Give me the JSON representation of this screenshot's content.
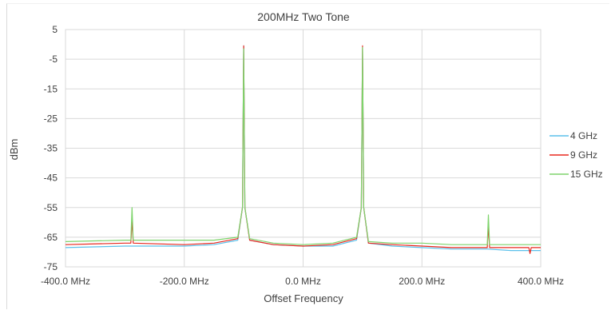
{
  "chart_data": {
    "type": "line",
    "title": "200MHz Two Tone",
    "xlabel": "Offset Frequency",
    "ylabel": "dBm",
    "xlim": [
      -400,
      400
    ],
    "ylim": [
      -75,
      5
    ],
    "x_unit": "MHz",
    "xticks": [
      "-400.0 MHz",
      "-200.0 MHz",
      "0.0 MHz",
      "200.0 MHz",
      "400.0 MHz"
    ],
    "yticks": [
      "5",
      "-5",
      "-15",
      "-25",
      "-35",
      "-45",
      "-55",
      "-65",
      "-75"
    ],
    "grid": "vertical and horizontal",
    "legend_position": "right",
    "series": [
      {
        "name": "4 GHz",
        "color": "#5bc0eb",
        "x": [
          -400,
          -300,
          -290,
          -200,
          -150,
          -110,
          -102,
          -100,
          -98,
          -90,
          -50,
          0,
          50,
          90,
          98,
          100,
          102,
          110,
          150,
          200,
          250,
          290,
          300,
          310,
          350,
          400
        ],
        "y": [
          -68.5,
          -68.0,
          -68.0,
          -68.0,
          -67.5,
          -66.0,
          -55.0,
          -0.5,
          -55.0,
          -66.0,
          -67.5,
          -68.0,
          -68.0,
          -66.0,
          -55.0,
          -1.5,
          -55.0,
          -67.0,
          -68.0,
          -68.5,
          -69.0,
          -69.0,
          -69.0,
          -69.0,
          -69.5,
          -69.5
        ]
      },
      {
        "name": "9 GHz",
        "color": "#e8281e",
        "x": [
          -400,
          -300,
          -290,
          -288,
          -286,
          -200,
          -150,
          -110,
          -102,
          -100,
          -98,
          -90,
          -50,
          0,
          50,
          90,
          98,
          100,
          102,
          110,
          150,
          200,
          250,
          300,
          310,
          312,
          314,
          350,
          380,
          382,
          384,
          400
        ],
        "y": [
          -67.5,
          -67.0,
          -67.0,
          -59.0,
          -67.0,
          -67.5,
          -67.0,
          -65.5,
          -55.0,
          -0.5,
          -55.0,
          -66.0,
          -67.5,
          -68.0,
          -67.5,
          -65.5,
          -55.0,
          -0.5,
          -55.0,
          -67.0,
          -67.5,
          -68.0,
          -68.5,
          -68.5,
          -68.5,
          -61.0,
          -68.5,
          -68.5,
          -68.5,
          -70.5,
          -68.5,
          -68.5
        ]
      },
      {
        "name": "15 GHz",
        "color": "#7ed46c",
        "x": [
          -400,
          -300,
          -290,
          -288,
          -286,
          -200,
          -150,
          -110,
          -102,
          -100,
          -98,
          -90,
          -50,
          0,
          50,
          90,
          98,
          100,
          102,
          110,
          150,
          200,
          250,
          300,
          310,
          312,
          314,
          350,
          400
        ],
        "y": [
          -66.5,
          -66.0,
          -66.0,
          -55.0,
          -66.0,
          -66.0,
          -66.0,
          -65.0,
          -55.0,
          -1.5,
          -55.0,
          -65.5,
          -67.0,
          -67.5,
          -67.0,
          -65.0,
          -55.0,
          -1.0,
          -55.0,
          -66.5,
          -67.0,
          -67.0,
          -67.5,
          -67.5,
          -67.5,
          -57.5,
          -67.5,
          -67.5,
          -67.5
        ]
      }
    ]
  }
}
